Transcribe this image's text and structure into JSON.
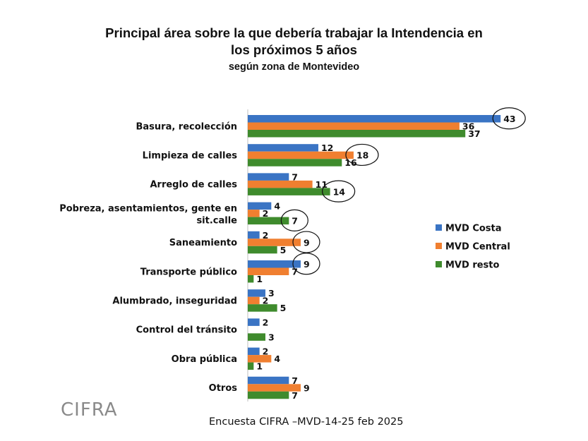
{
  "header": {
    "title_line1": "Principal área sobre la que debería trabajar la Intendencia en",
    "title_line2": "los próximos 5 años",
    "subtitle": "según zona de Montevideo"
  },
  "footer": {
    "logo": "CIFRA",
    "source": "Encuesta CIFRA –MVD-14-25 feb 2025"
  },
  "chart_data": {
    "type": "bar",
    "orientation": "horizontal",
    "categories": [
      [
        "Basura, recolección"
      ],
      [
        "Limpieza de calles"
      ],
      [
        "Arreglo de calles"
      ],
      [
        "Pobreza, asentamientos, gente en",
        "sit.calle"
      ],
      [
        "Saneamiento"
      ],
      [
        "Transporte público"
      ],
      [
        "Alumbrado,  inseguridad"
      ],
      [
        "Control del tránsito"
      ],
      [
        "Obra pública"
      ],
      [
        "Otros"
      ]
    ],
    "series": [
      {
        "name": "MVD Costa",
        "color": "#3a74c4",
        "values": [
          43,
          12,
          7,
          4,
          2,
          9,
          3,
          2,
          2,
          7
        ]
      },
      {
        "name": "MVD Central",
        "color": "#f07f30",
        "values": [
          36,
          18,
          11,
          2,
          9,
          7,
          2,
          null,
          4,
          9
        ]
      },
      {
        "name": "MVD resto",
        "color": "#3f8b2d",
        "values": [
          37,
          16,
          14,
          7,
          5,
          1,
          5,
          3,
          1,
          7
        ]
      }
    ],
    "highlighted": [
      [
        0,
        0
      ],
      [
        1,
        1
      ],
      [
        2,
        2
      ],
      [
        3,
        2
      ],
      [
        4,
        1
      ],
      [
        5,
        0
      ]
    ],
    "legend_position": "right",
    "grid": false
  }
}
